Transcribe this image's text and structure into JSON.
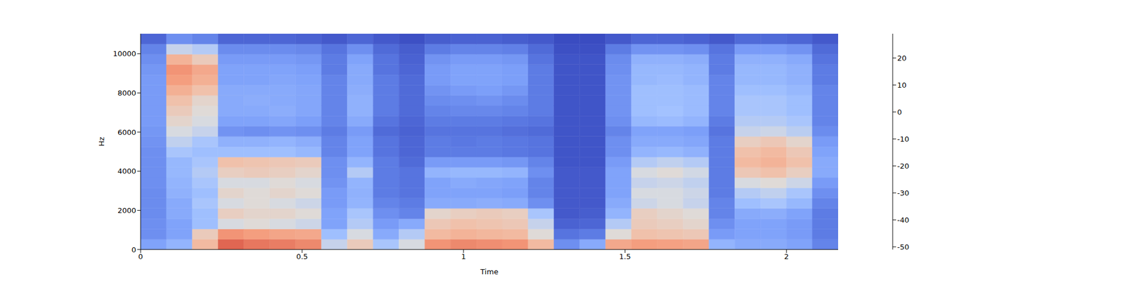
{
  "chart_data": {
    "type": "heatmap",
    "x_label": "Time",
    "y_label": "Hz",
    "xlim": [
      0,
      2.16
    ],
    "xticks": [
      0,
      0.5,
      1,
      1.5,
      2
    ],
    "ylim": [
      0,
      11025
    ],
    "yticks": [
      0,
      2000,
      4000,
      6000,
      8000,
      10000
    ],
    "x_edges": [
      0,
      0.08,
      0.16,
      0.24,
      0.32,
      0.4,
      0.48,
      0.56,
      0.64,
      0.72,
      0.8,
      0.88,
      0.96,
      1.04,
      1.12,
      1.2,
      1.28,
      1.36,
      1.44,
      1.52,
      1.6,
      1.68,
      1.76,
      1.84,
      1.92,
      2.0,
      2.08,
      2.16
    ],
    "y_edges": [
      0,
      525,
      1050,
      1575,
      2100,
      2625,
      3150,
      3675,
      4200,
      4725,
      5250,
      5775,
      6300,
      6825,
      7350,
      7875,
      8400,
      8925,
      9450,
      9975,
      10500,
      11025
    ],
    "cells": [
      [
        -30,
        -35,
        -35,
        -36,
        -36,
        -36,
        -35,
        -35,
        -35,
        -35,
        -34,
        -33,
        -32,
        -32,
        -32,
        -32,
        -32,
        -33,
        -35,
        -38,
        -45
      ],
      [
        -25,
        -30,
        -30,
        -28,
        -28,
        -26,
        -25,
        -24,
        -24,
        -20,
        -16,
        -12,
        -8,
        -5,
        -2,
        3,
        8,
        10,
        2,
        -15,
        -35
      ],
      [
        0,
        -5,
        -22,
        -22,
        -20,
        -22,
        -20,
        -18,
        -20,
        -22,
        -20,
        -15,
        -12,
        -10,
        -8,
        -2,
        3,
        5,
        -5,
        -18,
        -38
      ],
      [
        18,
        10,
        -12,
        -6,
        -12,
        -8,
        -12,
        -6,
        -2,
        -22,
        -26,
        -34,
        -30,
        -28,
        -28,
        -28,
        -30,
        -30,
        -32,
        -36,
        -45
      ],
      [
        15,
        8,
        -10,
        -8,
        -10,
        -10,
        -12,
        -5,
        -3,
        -22,
        -26,
        -35,
        -30,
        -28,
        -27,
        -28,
        -30,
        -30,
        -32,
        -36,
        -45
      ],
      [
        14,
        6,
        -12,
        -8,
        -12,
        -8,
        -10,
        -6,
        -4,
        -22,
        -25,
        -34,
        -29,
        -27,
        -28,
        -28,
        -29,
        -30,
        -32,
        -36,
        -45
      ],
      [
        12,
        5,
        -14,
        -10,
        -14,
        -10,
        -12,
        -8,
        -5,
        -24,
        -27,
        -35,
        -31,
        -29,
        -29,
        -29,
        -30,
        -31,
        -33,
        -37,
        -46
      ],
      [
        -15,
        -22,
        -30,
        -30,
        -32,
        -32,
        -34,
        -35,
        -35,
        -38,
        -38,
        -40,
        -38,
        -38,
        -38,
        -38,
        -38,
        -40,
        -40,
        -42,
        -48
      ],
      [
        -5,
        -12,
        -18,
        -20,
        -25,
        -26,
        -25,
        -18,
        -25,
        -30,
        -30,
        -32,
        -28,
        -26,
        -26,
        -27,
        -28,
        -28,
        -30,
        -35,
        -45
      ],
      [
        -20,
        -28,
        -32,
        -35,
        -38,
        -40,
        -40,
        -40,
        -40,
        -42,
        -42,
        -44,
        -42,
        -40,
        -40,
        -40,
        -40,
        -42,
        -42,
        -44,
        -48
      ],
      [
        -12,
        -18,
        -28,
        -38,
        -40,
        -42,
        -42,
        -42,
        -44,
        -45,
        -45,
        -46,
        -45,
        -44,
        -44,
        -44,
        -44,
        -45,
        -46,
        -47,
        -50
      ],
      [
        10,
        0,
        -4,
        -8,
        -28,
        -30,
        -30,
        -25,
        -32,
        -40,
        -40,
        -42,
        -40,
        -38,
        -36,
        -34,
        -32,
        -32,
        -34,
        -40,
        -47
      ],
      [
        12,
        2,
        -2,
        -6,
        -28,
        -30,
        -28,
        -24,
        -32,
        -40,
        -41,
        -42,
        -40,
        -37,
        -35,
        -32,
        -30,
        -30,
        -32,
        -38,
        -46
      ],
      [
        11,
        1,
        -3,
        -5,
        -27,
        -30,
        -29,
        -24,
        -32,
        -40,
        -40,
        -42,
        -40,
        -37,
        -34,
        -31,
        -30,
        -30,
        -32,
        -38,
        -46
      ],
      [
        10,
        0,
        -4,
        -6,
        -28,
        -31,
        -30,
        -25,
        -33,
        -41,
        -41,
        -43,
        -41,
        -38,
        -36,
        -33,
        -31,
        -31,
        -33,
        -39,
        -47
      ],
      [
        0,
        -10,
        -15,
        -20,
        -35,
        -38,
        -38,
        -35,
        -38,
        -42,
        -42,
        -44,
        -42,
        -40,
        -40,
        -40,
        -40,
        -40,
        -42,
        -44,
        -48
      ],
      [
        -35,
        -42,
        -46,
        -48,
        -48,
        -48,
        -48,
        -48,
        -49,
        -49,
        -49,
        -49,
        -49,
        -49,
        -49,
        -49,
        -49,
        -49,
        -49,
        -50,
        -51
      ],
      [
        -28,
        -40,
        -45,
        -47,
        -48,
        -48,
        -48,
        -48,
        -49,
        -49,
        -49,
        -49,
        -49,
        -49,
        -49,
        -49,
        -49,
        -49,
        -49,
        -50,
        -51
      ],
      [
        5,
        -10,
        -18,
        -25,
        -28,
        -30,
        -30,
        -30,
        -32,
        -35,
        -35,
        -38,
        -35,
        -34,
        -34,
        -34,
        -34,
        -35,
        -36,
        -40,
        -48
      ],
      [
        8,
        -2,
        -5,
        -6,
        -14,
        -12,
        -15,
        -12,
        -18,
        -25,
        -28,
        -30,
        -24,
        -22,
        -22,
        -22,
        -24,
        -24,
        -26,
        -34,
        -45
      ],
      [
        7,
        -3,
        -6,
        -8,
        -12,
        -12,
        -14,
        -10,
        -16,
        -24,
        -28,
        -30,
        -23,
        -21,
        -22,
        -22,
        -23,
        -24,
        -26,
        -34,
        -45
      ],
      [
        6,
        -4,
        -8,
        -10,
        -15,
        -14,
        -16,
        -13,
        -18,
        -26,
        -29,
        -31,
        -25,
        -23,
        -23,
        -23,
        -25,
        -25,
        -27,
        -35,
        -46
      ],
      [
        -25,
        -32,
        -35,
        -38,
        -38,
        -40,
        -40,
        -40,
        -40,
        -40,
        -40,
        -42,
        -40,
        -38,
        -38,
        -38,
        -38,
        -40,
        -40,
        -42,
        -48
      ],
      [
        -28,
        -30,
        -30,
        -28,
        -22,
        -18,
        -12,
        -4,
        0,
        -2,
        -6,
        -15,
        -18,
        -20,
        -20,
        -22,
        -24,
        -24,
        -26,
        -32,
        -44
      ],
      [
        -28,
        -30,
        -30,
        -27,
        -20,
        -16,
        -10,
        -2,
        2,
        0,
        -4,
        -14,
        -18,
        -20,
        -20,
        -22,
        -24,
        -24,
        -26,
        -32,
        -44
      ],
      [
        -30,
        -32,
        -32,
        -30,
        -24,
        -20,
        -14,
        -6,
        -2,
        -4,
        -8,
        -17,
        -20,
        -22,
        -22,
        -24,
        -26,
        -26,
        -28,
        -34,
        -45
      ],
      [
        -38,
        -40,
        -40,
        -40,
        -38,
        -35,
        -32,
        -28,
        -28,
        -30,
        -32,
        -36,
        -38,
        -38,
        -38,
        -38,
        -40,
        -40,
        -42,
        -44,
        -48
      ]
    ],
    "colorbar": {
      "range": [
        -51,
        29
      ],
      "ticks": [
        -50,
        -40,
        -30,
        -20,
        -10,
        0,
        10,
        20
      ]
    }
  }
}
